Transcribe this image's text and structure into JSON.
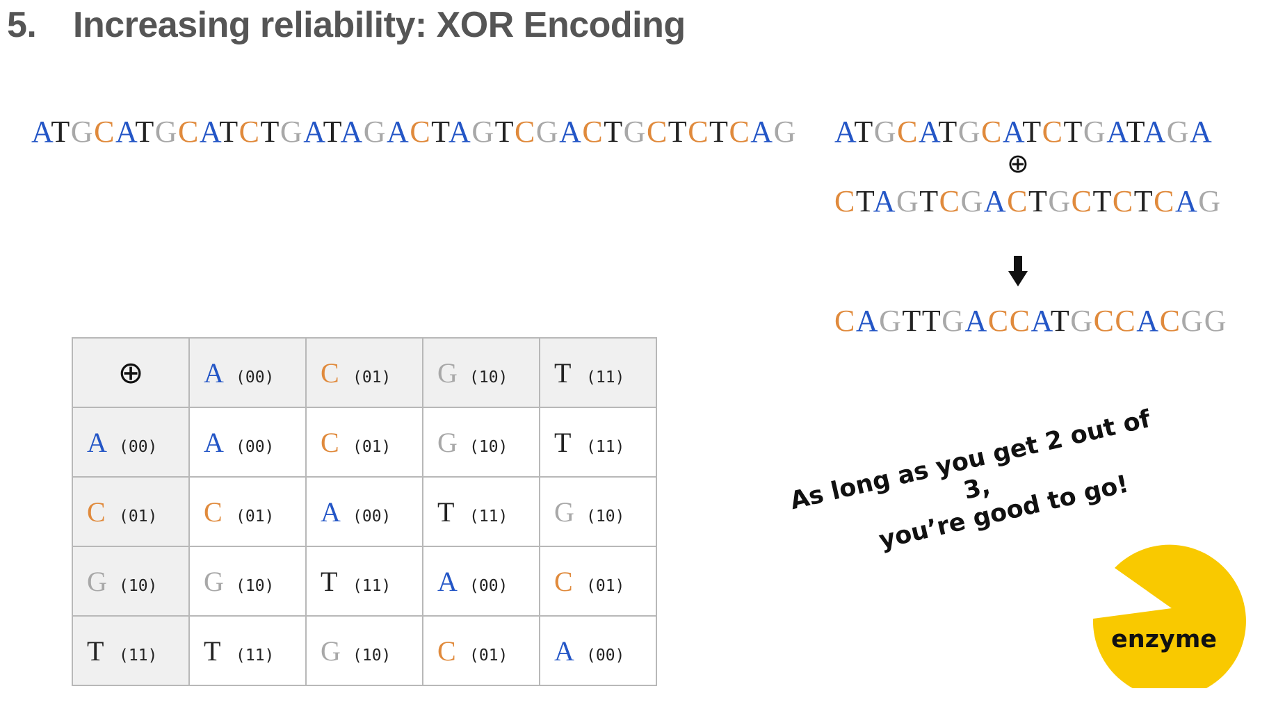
{
  "title": {
    "number": "5.",
    "text": "Increasing reliability: XOR Encoding"
  },
  "sequences": {
    "main": "ATGCATGCATCTGATAGACTAGTCGACTGCTCTCAG",
    "first_half": "ATGCATGCATCTGATAGA",
    "xor_symbol": "⊕",
    "second_half": "CTAGTCGACTGCTCTCAG",
    "result": "CAGTTGACCATGCCACGG"
  },
  "colors": {
    "A": "#2456c6",
    "C": "#e08a3c",
    "G": "#a8a8a8",
    "T": "#222222"
  },
  "table": {
    "corner": "⊕",
    "columns": [
      {
        "letter": "A",
        "code": "(00)"
      },
      {
        "letter": "C",
        "code": "(01)"
      },
      {
        "letter": "G",
        "code": "(10)"
      },
      {
        "letter": "T",
        "code": "(11)"
      }
    ],
    "rows": [
      {
        "header": {
          "letter": "A",
          "code": "(00)"
        },
        "cells": [
          {
            "letter": "A",
            "code": "(00)"
          },
          {
            "letter": "C",
            "code": "(01)"
          },
          {
            "letter": "G",
            "code": "(10)"
          },
          {
            "letter": "T",
            "code": "(11)"
          }
        ]
      },
      {
        "header": {
          "letter": "C",
          "code": "(01)"
        },
        "cells": [
          {
            "letter": "C",
            "code": "(01)"
          },
          {
            "letter": "A",
            "code": "(00)"
          },
          {
            "letter": "T",
            "code": "(11)"
          },
          {
            "letter": "G",
            "code": "(10)"
          }
        ]
      },
      {
        "header": {
          "letter": "G",
          "code": "(10)"
        },
        "cells": [
          {
            "letter": "G",
            "code": "(10)"
          },
          {
            "letter": "T",
            "code": "(11)"
          },
          {
            "letter": "A",
            "code": "(00)"
          },
          {
            "letter": "C",
            "code": "(01)"
          }
        ]
      },
      {
        "header": {
          "letter": "T",
          "code": "(11)"
        },
        "cells": [
          {
            "letter": "T",
            "code": "(11)"
          },
          {
            "letter": "G",
            "code": "(10)"
          },
          {
            "letter": "C",
            "code": "(01)"
          },
          {
            "letter": "A",
            "code": "(00)"
          }
        ]
      }
    ]
  },
  "note": {
    "line1": "As long as you get 2 out of 3,",
    "line2": "you’re good to go!"
  },
  "enzyme": {
    "label": "enzyme",
    "color": "#f9c900",
    "icon": "pacman-enzyme-icon"
  },
  "arrow_icon": "down-arrow-icon"
}
